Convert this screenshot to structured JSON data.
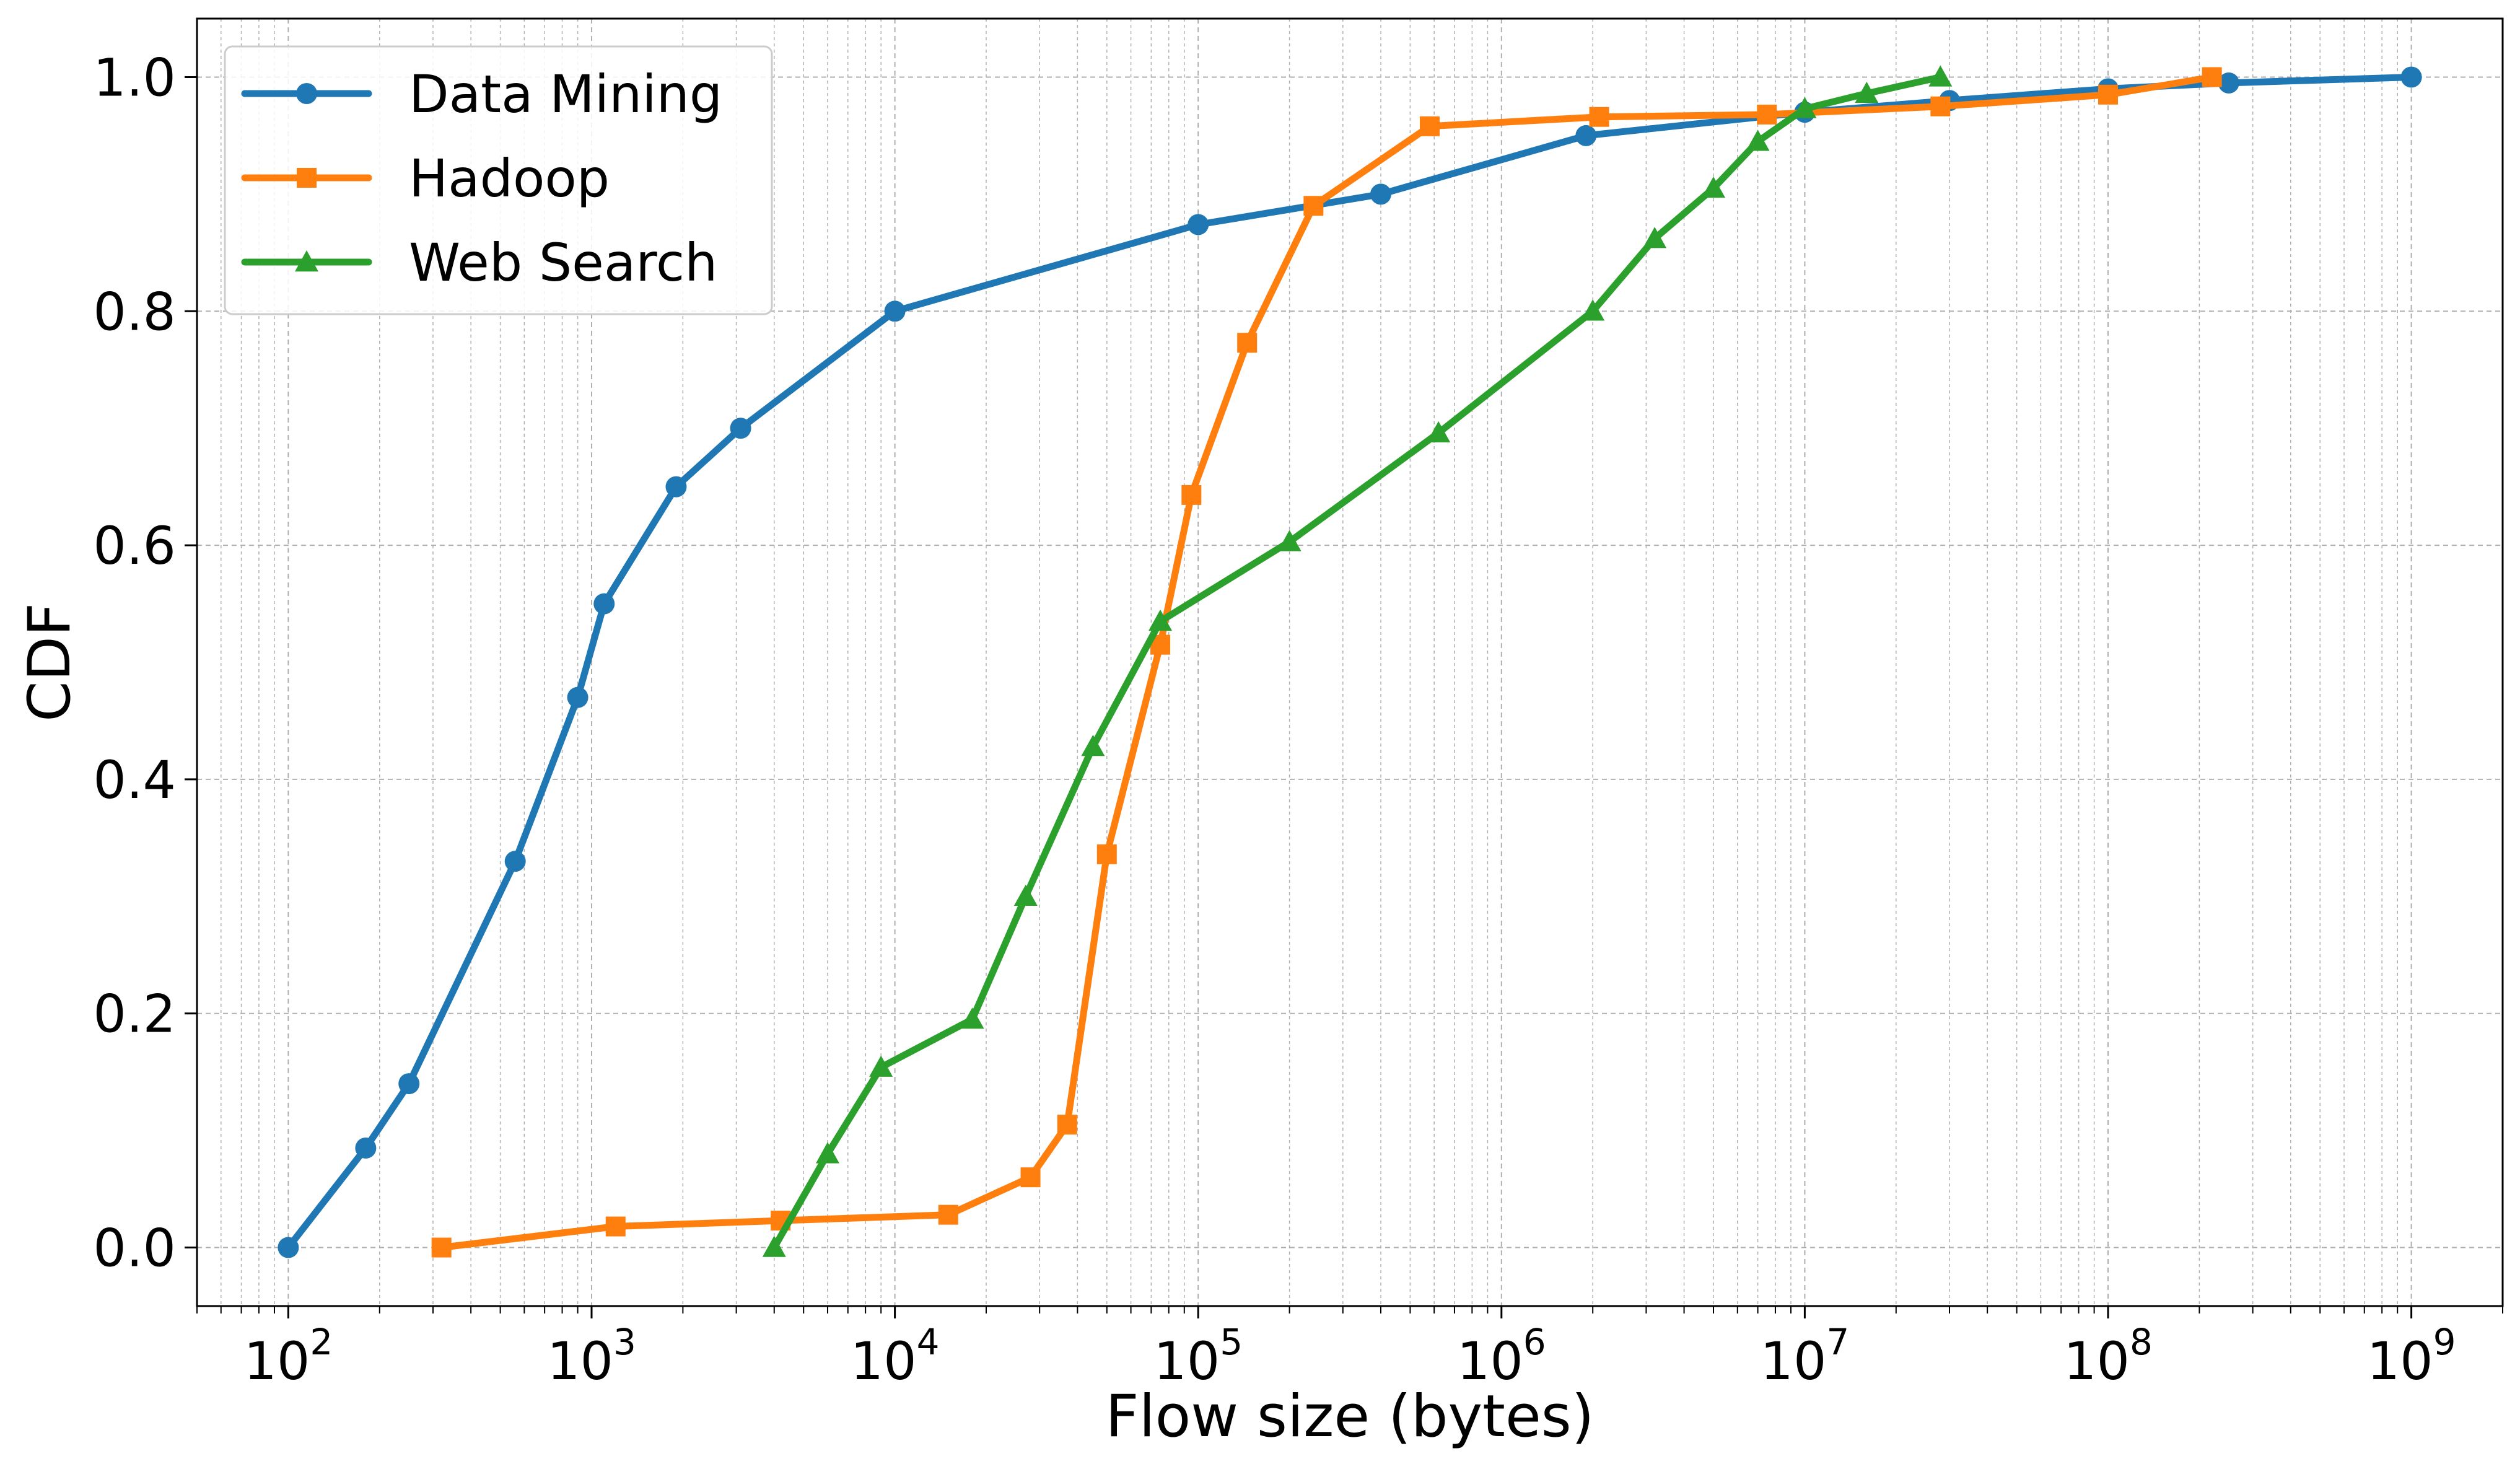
{
  "chart_data": {
    "type": "line",
    "xlabel": "Flow size (bytes)",
    "ylabel": "CDF",
    "xscale": "log",
    "xlim": [
      50,
      2000000000
    ],
    "ylim": [
      -0.05,
      1.05
    ],
    "grid": true,
    "grid_minor": true,
    "legend": "top-left",
    "x_ticks": [
      {
        "base": "10",
        "exp": "2",
        "value": 100
      },
      {
        "base": "10",
        "exp": "3",
        "value": 1000
      },
      {
        "base": "10",
        "exp": "4",
        "value": 10000
      },
      {
        "base": "10",
        "exp": "5",
        "value": 100000
      },
      {
        "base": "10",
        "exp": "6",
        "value": 1000000
      },
      {
        "base": "10",
        "exp": "7",
        "value": 10000000
      },
      {
        "base": "10",
        "exp": "8",
        "value": 100000000
      },
      {
        "base": "10",
        "exp": "9",
        "value": 1000000000
      }
    ],
    "y_ticks": [
      "0.0",
      "0.2",
      "0.4",
      "0.6",
      "0.8",
      "1.0"
    ],
    "series": [
      {
        "name": "Data Mining",
        "color": "#1f77b4",
        "marker": "circle",
        "points": [
          [
            100,
            0.0
          ],
          [
            180,
            0.085
          ],
          [
            250,
            0.14
          ],
          [
            560,
            0.33
          ],
          [
            900,
            0.47
          ],
          [
            1100,
            0.55
          ],
          [
            1900,
            0.65
          ],
          [
            3100,
            0.7
          ],
          [
            10000,
            0.8
          ],
          [
            100000,
            0.874
          ],
          [
            400000,
            0.9
          ],
          [
            1900000,
            0.95
          ],
          [
            10000000,
            0.97
          ],
          [
            30000000,
            0.98
          ],
          [
            100000000,
            0.99
          ],
          [
            250000000,
            0.995
          ],
          [
            1000000000,
            1.0
          ]
        ]
      },
      {
        "name": "Hadoop",
        "color": "#ff7f0e",
        "marker": "square",
        "points": [
          [
            320,
            0.0
          ],
          [
            1200,
            0.018
          ],
          [
            4200,
            0.023
          ],
          [
            15000,
            0.028
          ],
          [
            28000,
            0.06
          ],
          [
            37000,
            0.105
          ],
          [
            50000,
            0.336
          ],
          [
            75000,
            0.515
          ],
          [
            95000,
            0.643
          ],
          [
            145000,
            0.773
          ],
          [
            240000,
            0.89
          ],
          [
            580000,
            0.958
          ],
          [
            2100000,
            0.966
          ],
          [
            7500000,
            0.968
          ],
          [
            28000000,
            0.975
          ],
          [
            100000000,
            0.985
          ],
          [
            220000000,
            1.0
          ]
        ]
      },
      {
        "name": "Web Search",
        "color": "#2ca02c",
        "marker": "triangle",
        "points": [
          [
            4000,
            0.0
          ],
          [
            6000,
            0.08
          ],
          [
            9000,
            0.154
          ],
          [
            18000,
            0.195
          ],
          [
            27000,
            0.3
          ],
          [
            45000,
            0.428
          ],
          [
            75000,
            0.535
          ],
          [
            200000,
            0.603
          ],
          [
            620000,
            0.696
          ],
          [
            2000000,
            0.8
          ],
          [
            3200000,
            0.862
          ],
          [
            5000000,
            0.905
          ],
          [
            7000000,
            0.945
          ],
          [
            10000000,
            0.973
          ],
          [
            16000000,
            0.986
          ],
          [
            28000000,
            1.0
          ]
        ]
      }
    ]
  }
}
